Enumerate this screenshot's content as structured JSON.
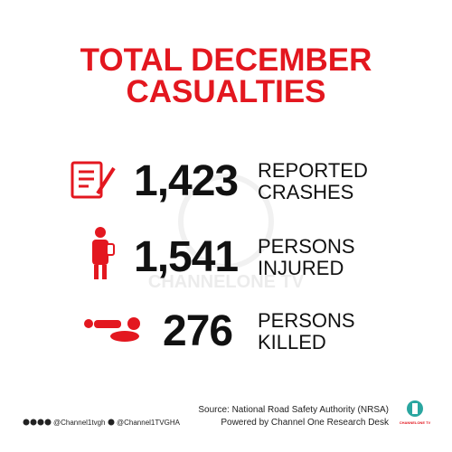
{
  "title": {
    "lines": [
      "TOTAL DECEMBER",
      "CASUALTIES"
    ]
  },
  "watermark": "CHANNELONE TV",
  "stats": [
    {
      "number": "1,423",
      "label": [
        "REPORTED",
        "CRASHES"
      ]
    },
    {
      "number": "1,541",
      "label": [
        "PERSONS",
        "INJURED"
      ]
    },
    {
      "number": "276",
      "label": [
        "PERSONS",
        "KILLED"
      ]
    }
  ],
  "footer": {
    "social": [
      "@Channel1tvgh",
      "@Channel1TVGHA"
    ],
    "source": [
      "Source: National Road Safety Authority (NRSA)",
      "Powered by Channel One Research Desk"
    ],
    "logo": "CHANNELONE TV"
  }
}
